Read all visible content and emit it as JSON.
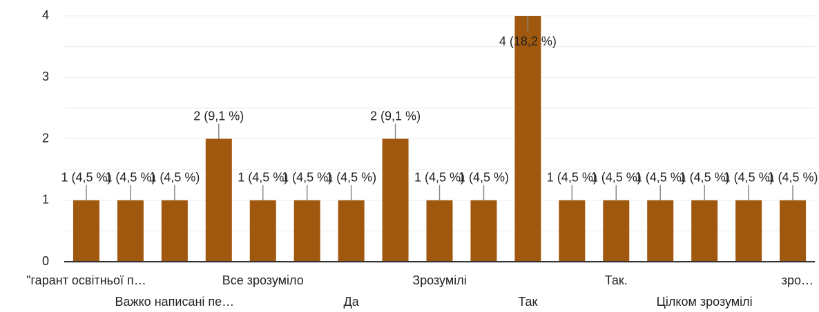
{
  "chart_data": {
    "type": "bar",
    "categories": [
      "\"гарант освітньої п…",
      null,
      "Важко написані пе…",
      null,
      "Все зрозуміло",
      null,
      "Да",
      null,
      "Зрозумілі",
      null,
      "Так",
      null,
      "Так.",
      null,
      "Цілком зрозумілі",
      null,
      "зро…"
    ],
    "values": [
      1,
      1,
      1,
      2,
      1,
      1,
      1,
      2,
      1,
      1,
      4,
      1,
      1,
      1,
      1,
      1,
      1
    ],
    "value_labels": [
      "1 (4,5 %)",
      "1 (4,5 %)",
      "1 (4,5 %)",
      "2 (9,1 %)",
      "1 (4,5 %)",
      "1 (4,5 %)",
      "1 (4,5 %)",
      "2 (9,1 %)",
      "1 (4,5 %)",
      "1 (4,5 %)",
      "4 (18,2 %)",
      "1 (4,5 %)",
      "1 (4,5 %)",
      "1 (4,5 %)",
      "1 (4,5 %)",
      "1 (4,5 %)",
      "1 (4,5 %)"
    ],
    "color": "#a0580e",
    "ylim": [
      0,
      4
    ],
    "yticks": [
      0,
      1,
      2,
      3,
      4
    ],
    "grid": true
  }
}
